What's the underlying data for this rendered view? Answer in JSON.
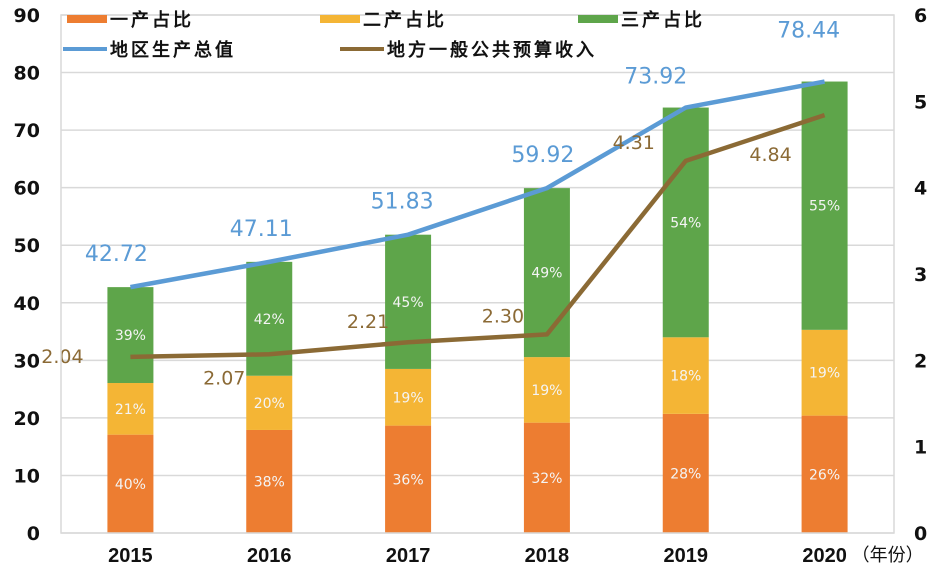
{
  "chart_data": {
    "type": "bar",
    "subtype": "stacked-bar-with-lines",
    "title": "",
    "xlabel": "（年份）",
    "ylabel": "",
    "ylabel_right": "",
    "categories": [
      "2015",
      "2016",
      "2017",
      "2018",
      "2019",
      "2020"
    ],
    "ylim": [
      0,
      90
    ],
    "yticks": [
      "0",
      "10",
      "20",
      "30",
      "40",
      "50",
      "60",
      "70",
      "80",
      "90"
    ],
    "ylim_right": [
      0,
      6
    ],
    "yticks_right": [
      "0",
      "1",
      "2",
      "3",
      "4",
      "5",
      "6"
    ],
    "grid": true,
    "legend_position": "top",
    "bar_series": [
      {
        "name": "一产占比",
        "color": "#ed7d31",
        "shares": [
          40,
          38,
          36,
          32,
          28,
          26
        ],
        "labels": [
          "40%",
          "38%",
          "36%",
          "32%",
          "28%",
          "26%"
        ]
      },
      {
        "name": "二产占比",
        "color": "#f4b535",
        "shares": [
          21,
          20,
          19,
          19,
          18,
          19
        ],
        "labels": [
          "21%",
          "20%",
          "19%",
          "19%",
          "18%",
          "19%"
        ]
      },
      {
        "name": "三产占比",
        "color": "#5ea54a",
        "shares": [
          39,
          42,
          45,
          49,
          54,
          55
        ],
        "labels": [
          "39%",
          "42%",
          "45%",
          "49%",
          "54%",
          "55%"
        ]
      }
    ],
    "line_series": [
      {
        "name": "地区生产总值",
        "color": "#5b9bd5",
        "axis": "left",
        "values": [
          42.72,
          47.11,
          51.83,
          59.92,
          73.92,
          78.44
        ],
        "labels": [
          "42.72",
          "47.11",
          "51.83",
          "59.92",
          "73.92",
          "78.44"
        ]
      },
      {
        "name": "地方一般公共预算收入",
        "color": "#8b6a35",
        "axis": "right",
        "values": [
          2.04,
          2.07,
          2.21,
          2.3,
          4.31,
          4.84
        ],
        "labels": [
          "2.04",
          "2.07",
          "2.21",
          "2.30",
          "4.31",
          "4.84"
        ]
      }
    ]
  }
}
